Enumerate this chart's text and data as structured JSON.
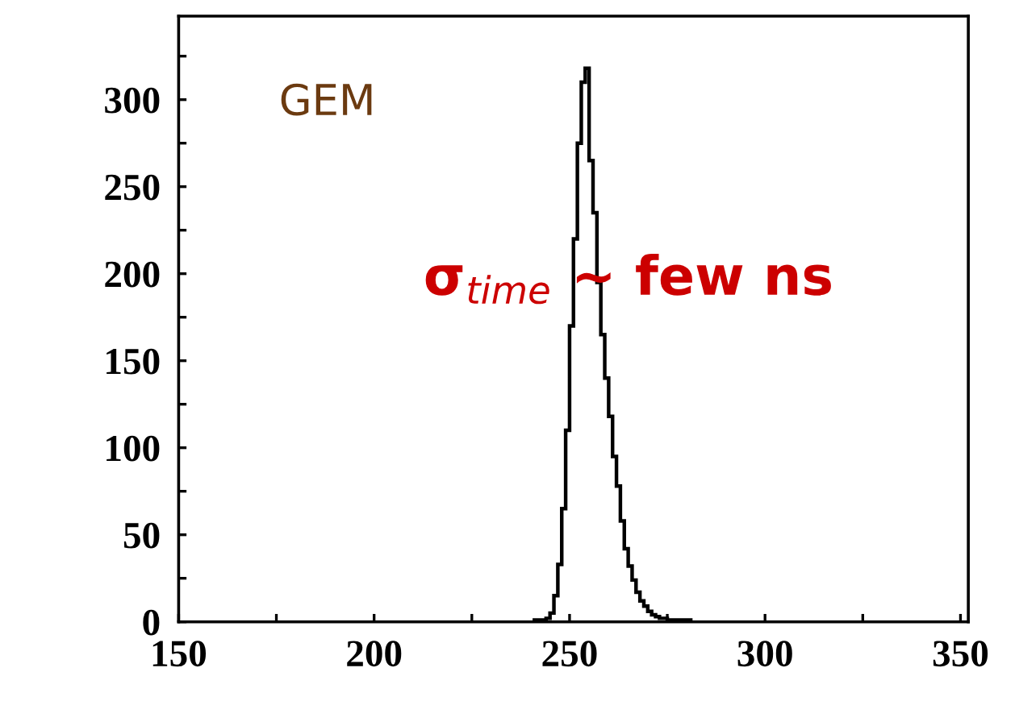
{
  "chart_data": {
    "type": "histogram",
    "bins": [
      241,
      242,
      243,
      244,
      245,
      246,
      247,
      248,
      249,
      250,
      251,
      252,
      253,
      254,
      255,
      256,
      257,
      258,
      259,
      260,
      261,
      262,
      263,
      264,
      265,
      266,
      267,
      268,
      269,
      270,
      271,
      272,
      273,
      274,
      275,
      276,
      277,
      278,
      279,
      280,
      281
    ],
    "values": [
      1,
      1,
      1,
      2,
      5,
      15,
      33,
      65,
      110,
      170,
      220,
      275,
      310,
      318,
      265,
      235,
      195,
      165,
      140,
      118,
      95,
      78,
      58,
      42,
      32,
      24,
      17,
      12,
      9,
      6,
      4,
      3,
      2,
      2,
      1,
      1,
      1,
      1,
      1,
      1
    ],
    "color": "#000000",
    "xlim": [
      150,
      352
    ],
    "ylim": [
      0,
      348
    ],
    "xticks": [
      150,
      {
        "value": 175,
        "label": null
      },
      200,
      {
        "value": 225,
        "label": null
      },
      250,
      {
        "value": 275,
        "label": null
      },
      300,
      {
        "value": 325,
        "label": null
      },
      350
    ],
    "yticks": [
      0,
      {
        "value": 25,
        "label": null
      },
      50,
      {
        "value": 75,
        "label": null
      },
      100,
      {
        "value": 125,
        "label": null
      },
      150,
      {
        "value": 175,
        "label": null
      },
      200,
      {
        "value": 225,
        "label": null
      },
      250,
      {
        "value": 275,
        "label": null
      },
      300,
      {
        "value": 325,
        "label": null
      }
    ],
    "grid": false,
    "annotations": [
      "GEM",
      "σ$_{time}$ ~ few ns"
    ]
  }
}
